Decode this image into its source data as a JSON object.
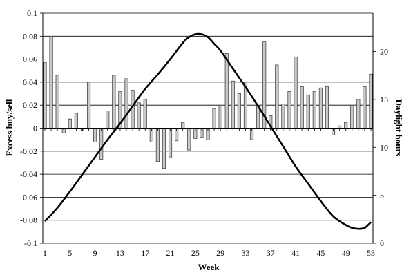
{
  "chart_data": {
    "type": "bar+line",
    "title": "",
    "xlabel": "Week",
    "ylabel_left": "Excess buy/sell",
    "ylabel_right": "Daylight hours",
    "ylim_left": [
      -0.1,
      0.1
    ],
    "ylim_right": [
      0,
      24
    ],
    "xlim": [
      1,
      53
    ],
    "grid": true,
    "legend": "none",
    "left_ticks": [
      "0.1",
      "0.08",
      "0.06",
      "0.04",
      "0.02",
      "0",
      "-0.02",
      "-0.04",
      "-0.06",
      "-0.08",
      "-0.1"
    ],
    "right_ticks": [
      "20",
      "15",
      "10",
      "5",
      "0"
    ],
    "x_ticks": [
      "1",
      "5",
      "9",
      "13",
      "17",
      "21",
      "25",
      "29",
      "33",
      "37",
      "41",
      "45",
      "49",
      "53"
    ],
    "bar_color": "#c8c8c8",
    "line_color": "#000000",
    "series": [
      {
        "kind": "bar",
        "axis": "left",
        "weeks": [
          1,
          2,
          3,
          4,
          5,
          6,
          7,
          8,
          9,
          10,
          11,
          12,
          13,
          14,
          15,
          16,
          17,
          18,
          19,
          20,
          21,
          22,
          23,
          24,
          25,
          26,
          27,
          28,
          29,
          30,
          31,
          32,
          33,
          34,
          35,
          36,
          37,
          38,
          39,
          40,
          41,
          42,
          43,
          44,
          45,
          46,
          47,
          48,
          49,
          50,
          51,
          52,
          53
        ],
        "values": [
          0.057,
          0.08,
          0.046,
          -0.004,
          0.008,
          0.013,
          -0.002,
          0.04,
          -0.012,
          -0.027,
          0.015,
          0.046,
          0.032,
          0.043,
          0.033,
          0.022,
          0.025,
          -0.012,
          -0.029,
          -0.035,
          -0.025,
          -0.011,
          0.005,
          -0.019,
          -0.009,
          -0.008,
          -0.01,
          0.017,
          0.02,
          0.065,
          0.041,
          0.03,
          0.04,
          -0.01,
          0.019,
          0.075,
          0.011,
          0.055,
          0.021,
          0.032,
          0.062,
          0.036,
          0.029,
          0.032,
          0.035,
          0.036,
          -0.006,
          0.002,
          0.005,
          0.02,
          0.025,
          0.036,
          0.047
        ]
      },
      {
        "kind": "line",
        "axis": "right",
        "weeks": [
          1,
          3,
          5,
          7,
          9,
          11,
          13,
          15,
          17,
          19,
          21,
          23,
          24,
          25,
          26,
          27,
          28,
          29,
          31,
          33,
          35,
          37,
          39,
          41,
          43,
          45,
          47,
          49,
          50,
          51,
          52,
          53
        ],
        "values": [
          2.3,
          3.7,
          5.4,
          7.2,
          9.0,
          10.8,
          12.5,
          14.3,
          16.1,
          17.6,
          19.2,
          20.9,
          21.5,
          21.8,
          21.8,
          21.5,
          20.8,
          20.1,
          18.2,
          16.3,
          14.3,
          12.2,
          10.1,
          8.0,
          6.2,
          4.4,
          2.8,
          1.9,
          1.6,
          1.5,
          1.6,
          2.2
        ]
      }
    ]
  }
}
